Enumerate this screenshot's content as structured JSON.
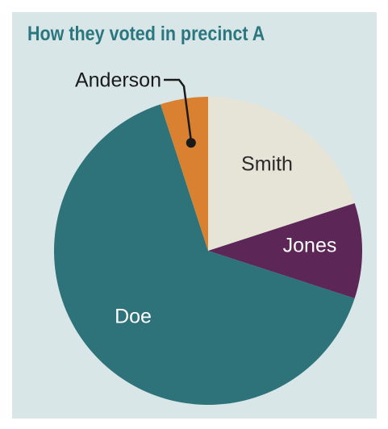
{
  "title": "How they voted in precinct A",
  "chart_data": {
    "type": "pie",
    "title": "How they voted in precinct A",
    "slices": [
      {
        "label": "Smith",
        "value": 20,
        "color": "#e6e3d7",
        "text_color": "#2a2a2a"
      },
      {
        "label": "Jones",
        "value": 10,
        "color": "#5c2656",
        "text_color": "#ffffff"
      },
      {
        "label": "Doe",
        "value": 65,
        "color": "#2e727a",
        "text_color": "#ffffff"
      },
      {
        "label": "Anderson",
        "value": 5,
        "color": "#d98130",
        "text_color": "#1a1a1a"
      }
    ],
    "start": "12 o'clock",
    "direction": "clockwise",
    "legend": "none"
  }
}
